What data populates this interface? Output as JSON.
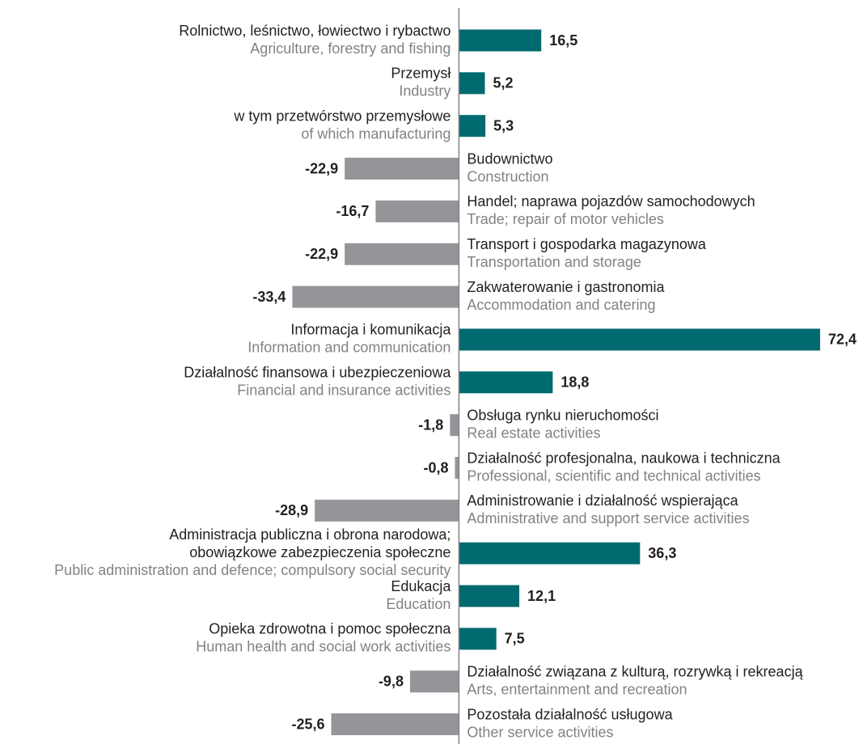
{
  "chart_data": {
    "type": "bar",
    "orientation": "horizontal",
    "categories": [
      [
        "Rolnictwo, leśnictwo, łowiectwo i rybactwo"
      ],
      [
        "Przemysł"
      ],
      [
        "w tym przetwórstwo przemysłowe"
      ],
      [
        "Budownictwo"
      ],
      [
        "Handel;  naprawa pojazdów samochodowych"
      ],
      [
        "Transport i gospodarka magazynowa"
      ],
      [
        "Zakwaterowanie i gastronomia"
      ],
      [
        "Informacja i komunikacja"
      ],
      [
        "Działalność finansowa i ubezpieczeniowa"
      ],
      [
        "Obsługa rynku nieruchomości"
      ],
      [
        "Działalność profesjonalna, naukowa i techniczna"
      ],
      [
        "Administrowanie i działalność wspierająca"
      ],
      [
        "Administracja publiczna i obrona narodowa;",
        "obowiązkowe zabezpieczenia społeczne"
      ],
      [
        "Edukacja"
      ],
      [
        "Opieka zdrowotna i pomoc społeczna"
      ],
      [
        "Działalność związana z kulturą, rozrywką i rekreacją"
      ],
      [
        "Pozostała działalność usługowa"
      ]
    ],
    "categories_en": [
      "Agriculture, forestry and fishing",
      "Industry",
      "of which manufacturing",
      "Construction",
      "Trade; repair of motor vehicles",
      "Transportation and storage",
      "Accommodation and catering",
      "Information and communication",
      "Financial and insurance activities",
      "Real estate activities",
      "Professional, scientific and  technical activities",
      "Administrative and support service activities",
      "Public administration and defence; compulsory social security",
      "Education",
      "Human health and social work activities",
      "Arts, entertainment and recreation",
      "Other service activities"
    ],
    "values": [
      16.5,
      5.2,
      5.3,
      -22.9,
      -16.7,
      -22.9,
      -33.4,
      72.4,
      18.8,
      -1.8,
      -0.8,
      -28.9,
      36.3,
      12.1,
      7.5,
      -9.8,
      -25.6
    ],
    "value_labels": [
      "16,5",
      "5,2",
      "5,3",
      "-22,9",
      "-16,7",
      "-22,9",
      "-33,4",
      "72,4",
      "18,8",
      "-1,8",
      "-0,8",
      "-28,9",
      "36,3",
      "12,1",
      "7,5",
      "-9,8",
      "-25,6"
    ],
    "colors": {
      "positive": "#006a70",
      "negative": "#939598"
    },
    "xlim": [
      -92,
      81
    ]
  }
}
